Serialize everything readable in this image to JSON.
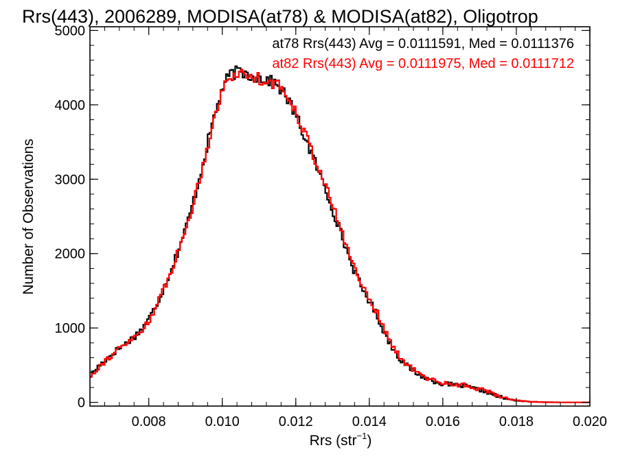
{
  "chart_data": {
    "type": "histogram-step",
    "title": "Rrs(443), 2006289, MODISA(at78) & MODISA(at82), Oligotrop",
    "xlabel": "Rrs (str",
    "xlabel_sup": "−1",
    "xlabel_close": ")",
    "ylabel": "Number of Observations",
    "xlim": [
      0.0064,
      0.02
    ],
    "ylim": [
      -50,
      5050
    ],
    "x_ticks": [
      0.008,
      0.01,
      0.012,
      0.014,
      0.016,
      0.018,
      0.02
    ],
    "x_tick_labels": [
      "0.008",
      "0.010",
      "0.012",
      "0.014",
      "0.016",
      "0.018",
      "0.020"
    ],
    "y_ticks": [
      0,
      1000,
      2000,
      3000,
      4000,
      5000
    ],
    "y_tick_labels": [
      "0",
      "1000",
      "2000",
      "3000",
      "4000",
      "5000"
    ],
    "bin_width": 5e-05,
    "series": [
      {
        "name": "at78 Rrs(443) Avg = 0.0111591, Med = 0.0111376",
        "color": "#000000",
        "x": [
          0.0064,
          0.0066,
          0.0068,
          0.007,
          0.0072,
          0.0074,
          0.0076,
          0.0078,
          0.008,
          0.0082,
          0.0084,
          0.0086,
          0.0088,
          0.009,
          0.0092,
          0.0094,
          0.0096,
          0.0098,
          0.01,
          0.0102,
          0.0104,
          0.0106,
          0.0108,
          0.011,
          0.0112,
          0.0114,
          0.0116,
          0.0118,
          0.012,
          0.0122,
          0.0124,
          0.0126,
          0.0128,
          0.013,
          0.0132,
          0.0134,
          0.0136,
          0.0138,
          0.014,
          0.0142,
          0.0144,
          0.0146,
          0.0148,
          0.015,
          0.0152,
          0.0154,
          0.0156,
          0.0158,
          0.016,
          0.0162,
          0.0164,
          0.0166,
          0.0168,
          0.017,
          0.0172,
          0.0174,
          0.0176,
          0.0178,
          0.018,
          0.0182,
          0.0184,
          0.0186,
          0.0188,
          0.019,
          0.0192,
          0.0194,
          0.0196,
          0.0198,
          0.02
        ],
        "y": [
          350,
          470,
          560,
          650,
          730,
          800,
          880,
          980,
          1120,
          1300,
          1530,
          1780,
          2040,
          2330,
          2670,
          3060,
          3480,
          3880,
          4220,
          4400,
          4440,
          4430,
          4390,
          4370,
          4340,
          4290,
          4210,
          4060,
          3860,
          3620,
          3380,
          3130,
          2870,
          2600,
          2320,
          2020,
          1760,
          1530,
          1370,
          1180,
          950,
          760,
          610,
          500,
          420,
          360,
          310,
          280,
          250,
          240,
          230,
          220,
          190,
          170,
          140,
          100,
          65,
          40,
          25,
          15,
          8,
          4,
          2,
          1,
          0,
          0,
          0,
          0,
          0
        ],
        "noise_seed": 17
      },
      {
        "name": "at82 Rrs(443) Avg = 0.0111975, Med = 0.0111712",
        "color": "#ff0000",
        "x": [
          0.0064,
          0.0066,
          0.0068,
          0.007,
          0.0072,
          0.0074,
          0.0076,
          0.0078,
          0.008,
          0.0082,
          0.0084,
          0.0086,
          0.0088,
          0.009,
          0.0092,
          0.0094,
          0.0096,
          0.0098,
          0.01,
          0.0102,
          0.0104,
          0.0106,
          0.0108,
          0.011,
          0.0112,
          0.0114,
          0.0116,
          0.0118,
          0.012,
          0.0122,
          0.0124,
          0.0126,
          0.0128,
          0.013,
          0.0132,
          0.0134,
          0.0136,
          0.0138,
          0.014,
          0.0142,
          0.0144,
          0.0146,
          0.0148,
          0.015,
          0.0152,
          0.0154,
          0.0156,
          0.0158,
          0.016,
          0.0162,
          0.0164,
          0.0166,
          0.0168,
          0.017,
          0.0172,
          0.0174,
          0.0176,
          0.0178,
          0.018,
          0.0182,
          0.0184,
          0.0186,
          0.0188,
          0.019,
          0.0192,
          0.0194,
          0.0196,
          0.0198,
          0.02
        ],
        "y": [
          340,
          460,
          550,
          640,
          720,
          790,
          870,
          960,
          1100,
          1280,
          1510,
          1760,
          2020,
          2310,
          2650,
          3040,
          3450,
          3850,
          4190,
          4380,
          4420,
          4410,
          4380,
          4360,
          4330,
          4290,
          4230,
          4100,
          3920,
          3680,
          3430,
          3180,
          2920,
          2650,
          2370,
          2080,
          1810,
          1580,
          1410,
          1220,
          990,
          790,
          630,
          520,
          440,
          370,
          320,
          290,
          260,
          250,
          240,
          230,
          200,
          180,
          150,
          110,
          72,
          45,
          28,
          17,
          9,
          5,
          2,
          1,
          0,
          0,
          0,
          0,
          0
        ],
        "noise_seed": 91
      }
    ],
    "legend_placement": "top-right"
  }
}
